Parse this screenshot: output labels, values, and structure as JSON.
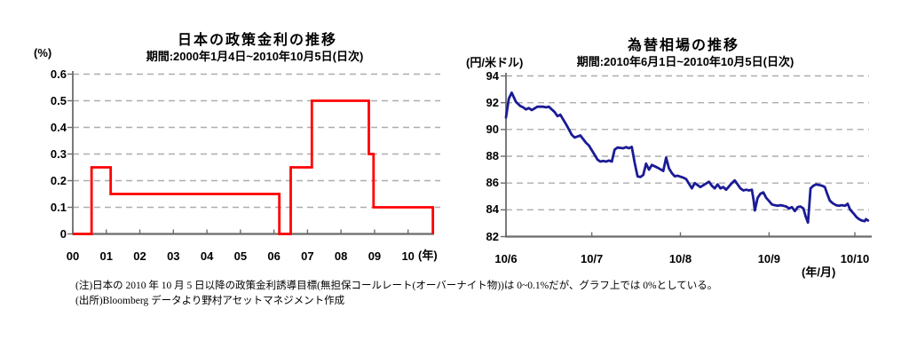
{
  "accent_colors": {
    "policy_rate_line": "#ff0000",
    "fx_line": "#1b1b96",
    "grid": "#adadad",
    "axis": "#6b6b6b"
  },
  "chart_data": [
    {
      "type": "line",
      "subtype": "step",
      "title": "日本の政策金利の推移",
      "subtitle": "期間:2000年1月4日~2010年10月5日(日次)",
      "ylabel": "(%)",
      "xlabel": "(年)",
      "line_color": "#ff0000",
      "grid": "dashed-horizontal",
      "ylim": [
        0,
        0.6
      ],
      "xlim_years_from_2000": [
        0,
        10.79
      ],
      "y_ticks": [
        [
          0,
          "0"
        ],
        [
          0.1,
          "0.1"
        ],
        [
          0.2,
          "0.2"
        ],
        [
          0.3,
          "0.3"
        ],
        [
          0.4,
          "0.4"
        ],
        [
          0.5,
          "0.5"
        ],
        [
          0.6,
          "0.6"
        ]
      ],
      "x_ticks": [
        {
          "label": "00",
          "x": 0
        },
        {
          "label": "01",
          "x": 1
        },
        {
          "label": "02",
          "x": 2
        },
        {
          "label": "03",
          "x": 3
        },
        {
          "label": "04",
          "x": 4
        },
        {
          "label": "05",
          "x": 5
        },
        {
          "label": "06",
          "x": 6
        },
        {
          "label": "07",
          "x": 7
        },
        {
          "label": "08",
          "x": 8
        },
        {
          "label": "09",
          "x": 9
        },
        {
          "label": "10",
          "x": 10
        }
      ],
      "step_points_year_rate": [
        [
          0,
          0
        ],
        [
          0.56,
          0.25
        ],
        [
          1.13,
          0.15
        ],
        [
          6.16,
          0
        ],
        [
          6.5,
          0.25
        ],
        [
          7.13,
          0.5
        ],
        [
          8.83,
          0.3
        ],
        [
          8.97,
          0.1
        ],
        [
          10.74,
          0
        ]
      ]
    },
    {
      "type": "line",
      "subtype": "plain",
      "title": "為替相場の推移",
      "subtitle": "期間:2010年6月1日~2010年10月5日(日次)",
      "ylabel": "(円/米ドル)",
      "xlabel": "(年/月)",
      "line_color": "#1b1b96",
      "grid": "dashed-horizontal",
      "ylim": [
        82,
        94
      ],
      "xlim_days_from_2010_06_01": [
        0,
        128
      ],
      "y_ticks": [
        [
          82,
          "82"
        ],
        [
          84,
          "84"
        ],
        [
          86,
          "86"
        ],
        [
          88,
          "88"
        ],
        [
          90,
          "90"
        ],
        [
          92,
          "92"
        ],
        [
          94,
          "94"
        ]
      ],
      "x_ticks": [
        {
          "label": "10/6",
          "x": 0
        },
        {
          "label": "10/7",
          "x": 30
        },
        {
          "label": "10/8",
          "x": 61
        },
        {
          "label": "10/9",
          "x": 92
        },
        {
          "label": "10/10",
          "x": 122
        }
      ],
      "points_day_rate": [
        [
          0,
          90.9
        ],
        [
          1,
          92.3
        ],
        [
          2,
          92.75
        ],
        [
          3.5,
          92.05
        ],
        [
          5,
          91.75
        ],
        [
          6,
          91.65
        ],
        [
          7,
          91.5
        ],
        [
          8,
          91.6
        ],
        [
          9,
          91.45
        ],
        [
          11,
          91.7
        ],
        [
          13,
          91.7
        ],
        [
          14,
          91.65
        ],
        [
          15,
          91.7
        ],
        [
          16,
          91.5
        ],
        [
          17,
          91.3
        ],
        [
          18,
          91.0
        ],
        [
          19,
          91.1
        ],
        [
          20,
          90.75
        ],
        [
          21,
          90.4
        ],
        [
          22,
          90.0
        ],
        [
          23,
          89.6
        ],
        [
          24,
          89.4
        ],
        [
          26,
          89.55
        ],
        [
          28,
          89.0
        ],
        [
          29,
          88.8
        ],
        [
          31,
          88.1
        ],
        [
          32,
          87.75
        ],
        [
          33,
          87.6
        ],
        [
          34,
          87.65
        ],
        [
          35,
          87.6
        ],
        [
          36,
          87.68
        ],
        [
          37,
          87.6
        ],
        [
          38,
          88.5
        ],
        [
          39,
          88.65
        ],
        [
          41,
          88.6
        ],
        [
          42,
          88.68
        ],
        [
          43,
          88.6
        ],
        [
          44,
          88.7
        ],
        [
          45,
          87.5
        ],
        [
          46,
          86.5
        ],
        [
          47,
          86.45
        ],
        [
          48,
          86.6
        ],
        [
          49,
          87.45
        ],
        [
          50,
          87.0
        ],
        [
          51,
          87.35
        ],
        [
          53,
          87.15
        ],
        [
          55,
          86.9
        ],
        [
          56,
          87.9
        ],
        [
          57,
          87.1
        ],
        [
          58,
          86.75
        ],
        [
          59,
          86.5
        ],
        [
          60,
          86.55
        ],
        [
          62,
          86.4
        ],
        [
          63,
          86.3
        ],
        [
          65,
          85.6
        ],
        [
          66,
          86.0
        ],
        [
          68,
          85.7
        ],
        [
          71,
          86.1
        ],
        [
          72,
          85.8
        ],
        [
          73,
          85.6
        ],
        [
          74,
          85.9
        ],
        [
          75,
          85.6
        ],
        [
          76,
          85.7
        ],
        [
          77,
          85.5
        ],
        [
          79,
          86.0
        ],
        [
          80,
          86.2
        ],
        [
          81,
          85.9
        ],
        [
          82,
          85.6
        ],
        [
          83,
          85.45
        ],
        [
          84,
          85.5
        ],
        [
          85,
          85.45
        ],
        [
          86,
          85.5
        ],
        [
          86.6,
          84.7
        ],
        [
          87,
          83.95
        ],
        [
          88,
          84.9
        ],
        [
          89,
          85.2
        ],
        [
          90,
          85.3
        ],
        [
          91,
          84.9
        ],
        [
          92,
          84.65
        ],
        [
          93,
          84.4
        ],
        [
          94,
          84.35
        ],
        [
          95,
          84.3
        ],
        [
          96,
          84.35
        ],
        [
          97,
          84.3
        ],
        [
          98,
          84.25
        ],
        [
          99,
          84.1
        ],
        [
          100,
          84.2
        ],
        [
          101,
          83.9
        ],
        [
          102,
          84.2
        ],
        [
          103,
          84.25
        ],
        [
          104,
          84.1
        ],
        [
          104.8,
          83.5
        ],
        [
          105.6,
          83.05
        ],
        [
          106.5,
          85.6
        ],
        [
          107.5,
          85.8
        ],
        [
          108.5,
          85.9
        ],
        [
          109.5,
          85.85
        ],
        [
          110.5,
          85.8
        ],
        [
          111.5,
          85.7
        ],
        [
          112.3,
          85.2
        ],
        [
          113.2,
          84.7
        ],
        [
          114.2,
          84.5
        ],
        [
          115.4,
          84.35
        ],
        [
          116.4,
          84.3
        ],
        [
          117.4,
          84.35
        ],
        [
          118.6,
          84.3
        ],
        [
          119.5,
          84.45
        ],
        [
          120.4,
          84.0
        ],
        [
          121.7,
          83.7
        ],
        [
          122.6,
          83.45
        ],
        [
          123.5,
          83.3
        ],
        [
          124.4,
          83.2
        ],
        [
          125.4,
          83.15
        ],
        [
          125.9,
          83.3
        ],
        [
          126.6,
          83.2
        ]
      ]
    }
  ],
  "notes": {
    "line1": "(注)日本の 2010 年 10 月 5 日以降の政策金利誘導目標(無担保コールレート(オーバーナイト物))は 0~0.1%だが、グラフ上では 0%としている。",
    "line2": "(出所)Bloomberg データより野村アセットマネジメント作成"
  }
}
